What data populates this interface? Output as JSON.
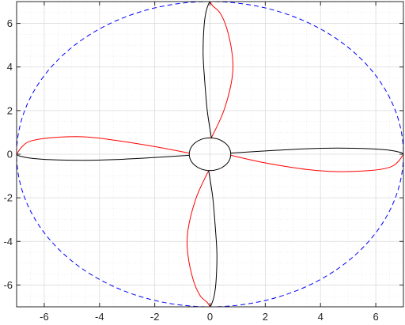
{
  "chart_data": {
    "type": "line",
    "title": "",
    "xlabel": "",
    "ylabel": "",
    "xlim": [
      -7,
      7
    ],
    "ylim": [
      -7,
      7
    ],
    "grid": true,
    "minor_grid": true,
    "legend": "none",
    "xticks": [
      -6,
      -4,
      -2,
      0,
      2,
      4,
      6
    ],
    "yticks": [
      -6,
      -4,
      -2,
      0,
      2,
      4,
      6
    ],
    "xtick_labels": [
      "-6",
      "-4",
      "-2",
      "0",
      "2",
      "4",
      "6"
    ],
    "ytick_labels": [
      "-6",
      "-4",
      "-2",
      "0",
      "2",
      "4",
      "6"
    ],
    "series": [
      {
        "style": "dashed",
        "color": "#0000ff",
        "shape": "circle",
        "center": [
          0,
          0
        ],
        "radius": 7
      },
      {
        "style": "solid",
        "color": "#000000",
        "shape": "ellipse",
        "center": [
          0,
          0
        ],
        "rx": 0.75,
        "ry": 0.75
      },
      {
        "style": "solid",
        "color": "#ff0000",
        "shape": "blades",
        "blades": [
          {
            "x": [
              -0.75,
              -2,
              -3.5,
              -4.6,
              -5.8,
              -6.5,
              -6.8,
              -7.0
            ],
            "y": [
              0.05,
              0.35,
              0.65,
              0.8,
              0.75,
              0.6,
              0.35,
              0.0
            ]
          },
          {
            "x": [
              0.05,
              0.5,
              0.8,
              0.8,
              0.6,
              0.35,
              0.1,
              0.0
            ],
            "y": [
              0.75,
              2,
              3.5,
              4.6,
              5.8,
              6.5,
              6.8,
              7.0
            ]
          },
          {
            "x": [
              0.75,
              2,
              3.5,
              4.6,
              5.8,
              6.5,
              6.8,
              7.0
            ],
            "y": [
              -0.05,
              -0.4,
              -0.7,
              -0.8,
              -0.75,
              -0.6,
              -0.35,
              0.0
            ]
          },
          {
            "x": [
              -0.05,
              -0.5,
              -0.8,
              -0.8,
              -0.6,
              -0.35,
              -0.1,
              0.0
            ],
            "y": [
              -0.75,
              -2,
              -3.5,
              -4.6,
              -5.8,
              -6.5,
              -6.8,
              -7.0
            ]
          }
        ]
      },
      {
        "style": "solid",
        "color": "#000000",
        "shape": "blades",
        "blades": [
          {
            "x": [
              -0.75,
              -2,
              -3.5,
              -4.6,
              -5.8,
              -6.5,
              -6.9,
              -7.0
            ],
            "y": [
              -0.05,
              -0.15,
              -0.25,
              -0.28,
              -0.25,
              -0.18,
              -0.08,
              0.0
            ]
          },
          {
            "x": [
              0.05,
              -0.1,
              -0.2,
              -0.25,
              -0.22,
              -0.15,
              -0.05,
              0.0
            ],
            "y": [
              0.75,
              2,
              3.5,
              4.6,
              5.8,
              6.5,
              6.9,
              7.0
            ]
          },
          {
            "x": [
              0.75,
              2,
              3.5,
              4.6,
              5.8,
              6.5,
              6.9,
              7.0
            ],
            "y": [
              0.05,
              0.15,
              0.25,
              0.28,
              0.25,
              0.18,
              0.08,
              0.0
            ]
          },
          {
            "x": [
              -0.05,
              0.1,
              0.2,
              0.25,
              0.22,
              0.15,
              0.05,
              0.0
            ],
            "y": [
              -0.75,
              -2,
              -3.5,
              -4.6,
              -5.8,
              -6.5,
              -6.9,
              -7.0
            ]
          }
        ]
      }
    ]
  }
}
